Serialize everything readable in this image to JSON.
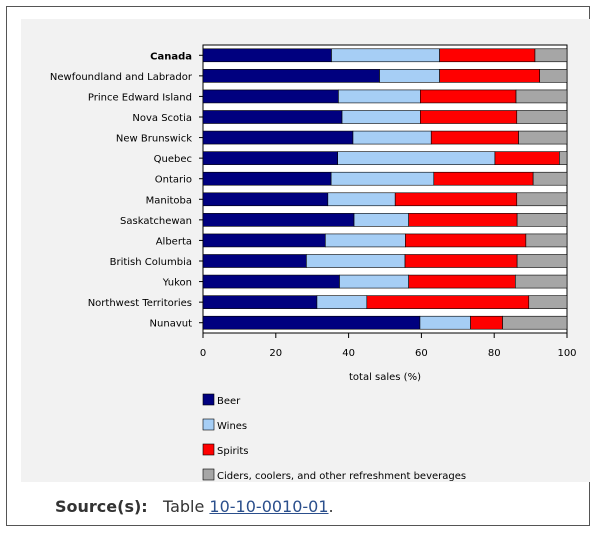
{
  "chart_data": {
    "type": "bar",
    "orientation": "horizontal",
    "stacked": true,
    "categories": [
      "Canada",
      "Newfoundland and Labrador",
      "Prince Edward Island",
      "Nova Scotia",
      "New Brunswick",
      "Quebec",
      "Ontario",
      "Manitoba",
      "Saskatchewan",
      "Alberta",
      "British Columbia",
      "Yukon",
      "Northwest Territories",
      "Nunavut"
    ],
    "bold_categories": [
      "Canada"
    ],
    "series": [
      {
        "name": "Beer",
        "color": "#00007f",
        "values": [
          35.3,
          48.5,
          37.2,
          38.2,
          41.2,
          37.0,
          35.2,
          34.3,
          41.5,
          33.6,
          28.4,
          37.5,
          31.3,
          59.6
        ]
      },
      {
        "name": "Wines",
        "color": "#a6cef5",
        "values": [
          29.7,
          16.5,
          22.5,
          21.5,
          21.5,
          43.2,
          28.2,
          18.5,
          15.0,
          22.0,
          27.1,
          19.0,
          13.7,
          13.9
        ]
      },
      {
        "name": "Spirits",
        "color": "#ff0000",
        "values": [
          26.2,
          27.5,
          26.3,
          26.5,
          24.0,
          17.7,
          27.3,
          33.4,
          29.8,
          33.1,
          30.8,
          29.3,
          44.5,
          8.8
        ]
      },
      {
        "name": "Ciders, coolers, and other refreshment beverages",
        "color": "#a6a6a6",
        "values": [
          8.8,
          7.5,
          14.0,
          13.8,
          13.3,
          2.1,
          9.3,
          13.8,
          13.7,
          11.3,
          13.7,
          14.2,
          10.5,
          17.7
        ]
      }
    ],
    "xlabel": "total sales (%)",
    "ylabel": "",
    "xlim": [
      0,
      100
    ],
    "xticks": [
      0,
      20,
      40,
      60,
      80,
      100
    ],
    "grid": false,
    "legend_position": "bottom-left"
  },
  "source": {
    "label": "Source(s):",
    "prefix": "Table ",
    "link_text": "10-10-0010-01",
    "suffix": "."
  }
}
